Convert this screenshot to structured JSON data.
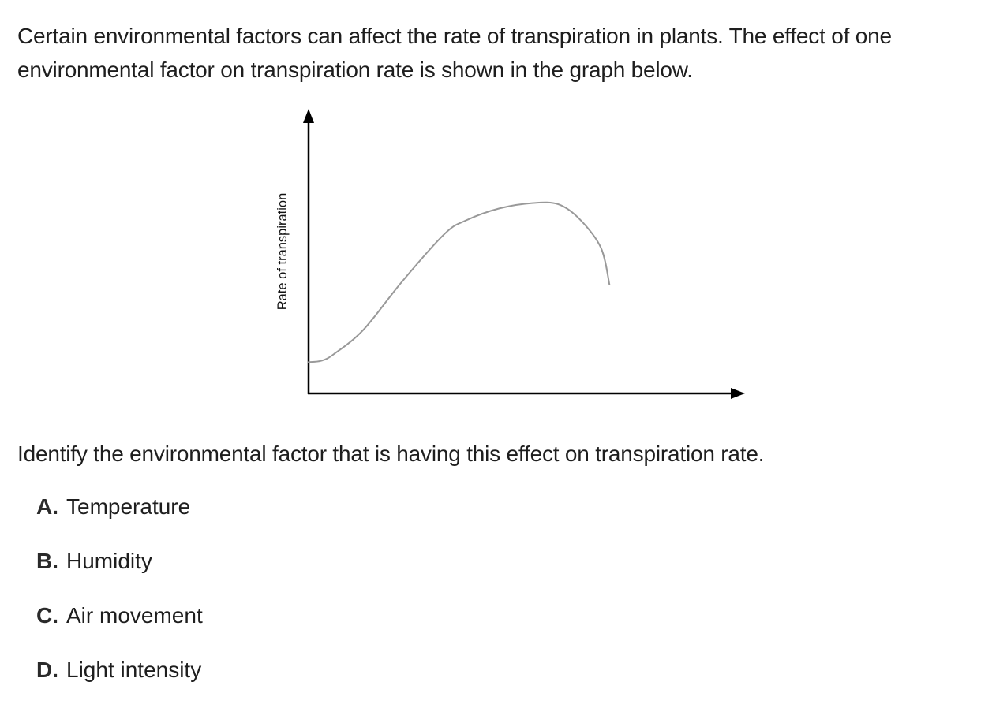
{
  "intro_text": "Certain environmental factors can affect the rate of transpiration in plants. The effect of one environmental factor on transpiration rate is shown in the graph below.",
  "chart_data": {
    "type": "line",
    "title": "",
    "xlabel": "",
    "ylabel": "Rate of transpiration",
    "grid": false,
    "legend": "none",
    "xlim": [
      0,
      10
    ],
    "ylim": [
      0,
      10
    ],
    "series": [
      {
        "color": "#999999",
        "points": [
          [
            0.0,
            1.15
          ],
          [
            0.3,
            1.2
          ],
          [
            0.6,
            1.45
          ],
          [
            1.3,
            2.35
          ],
          [
            2.2,
            4.1
          ],
          [
            3.2,
            5.85
          ],
          [
            3.7,
            6.35
          ],
          [
            4.5,
            6.8
          ],
          [
            5.3,
            7.0
          ],
          [
            5.9,
            6.95
          ],
          [
            6.4,
            6.4
          ],
          [
            6.9,
            5.35
          ],
          [
            7.1,
            4.0
          ]
        ]
      }
    ]
  },
  "question_text": "Identify the environmental factor that is having this effect on transpiration rate.",
  "options": [
    {
      "letter": "A.",
      "text": "Temperature"
    },
    {
      "letter": "B.",
      "text": "Humidity"
    },
    {
      "letter": "C.",
      "text": "Air movement"
    },
    {
      "letter": "D.",
      "text": "Light intensity"
    }
  ]
}
